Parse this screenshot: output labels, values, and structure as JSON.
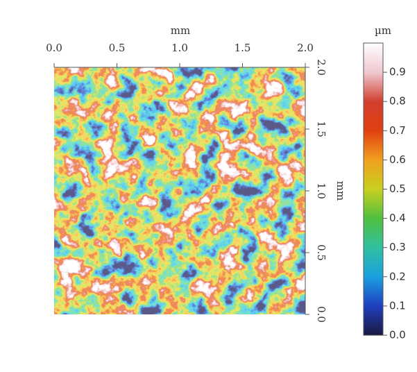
{
  "chart_data": {
    "type": "heatmap",
    "x_label": "mm",
    "y_label": "mm",
    "xlim": [
      0,
      2
    ],
    "xticks": [
      {
        "value": 0,
        "label": "0.0"
      },
      {
        "value": 0.5,
        "label": "0.5"
      },
      {
        "value": 1,
        "label": "1.0"
      },
      {
        "value": 1.5,
        "label": "1.5"
      },
      {
        "value": 2,
        "label": "2.0"
      }
    ],
    "ylim": [
      0,
      2
    ],
    "yticks": [
      {
        "value": 0,
        "label": "0.0"
      },
      {
        "value": 0.5,
        "label": "0.5"
      },
      {
        "value": 1,
        "label": "1.0"
      },
      {
        "value": 1.5,
        "label": "1.5"
      },
      {
        "value": 2,
        "label": "2.0"
      }
    ],
    "colorbar": {
      "label": "µm",
      "lim": [
        0,
        1
      ],
      "ticks": [
        {
          "value": 0,
          "label": "0.0"
        },
        0.1,
        0.2,
        0.3,
        0.4,
        0.5,
        0.6,
        0.7,
        0.8,
        0.9
      ],
      "colors": [
        "#1a1a40",
        "#1f3fbf",
        "#1aa0e0",
        "#30c0a0",
        "#50c040",
        "#c8d020",
        "#f0a020",
        "#e04010",
        "#d04030",
        "#f0c8d0",
        "#ffffff"
      ]
    }
  }
}
